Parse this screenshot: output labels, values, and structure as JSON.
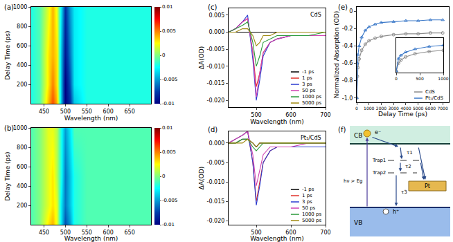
{
  "chart_data": [
    {
      "panel": "(a)",
      "type": "heatmap",
      "xlabel": "Wavelength (nm)",
      "ylabel": "Delay Time (ps)",
      "x": [
        420,
        440,
        460,
        470,
        480,
        490,
        500,
        510,
        520,
        550,
        600,
        650,
        700
      ],
      "y": [
        0,
        200,
        500,
        1000
      ],
      "z": [
        [
          -0.002,
          -0.001,
          0.004,
          0.006,
          0.004,
          -0.004,
          -0.01,
          -0.008,
          -0.004,
          -0.002,
          -0.002,
          -0.002,
          -0.002
        ],
        [
          -0.002,
          -0.001,
          0.003,
          0.005,
          0.003,
          -0.004,
          -0.01,
          -0.007,
          -0.003,
          -0.002,
          -0.002,
          -0.002,
          -0.002
        ],
        [
          -0.002,
          -0.001,
          0.003,
          0.004,
          0.003,
          -0.004,
          -0.009,
          -0.006,
          -0.003,
          -0.002,
          -0.002,
          -0.002,
          -0.002
        ],
        [
          -0.002,
          -0.001,
          0.002,
          0.004,
          0.002,
          -0.003,
          -0.008,
          -0.005,
          -0.003,
          -0.002,
          -0.002,
          -0.002,
          -0.002
        ]
      ],
      "xlim": [
        420,
        700
      ],
      "xticks": [
        450,
        500,
        550,
        600,
        650
      ],
      "ylim": [
        0,
        1000
      ],
      "yticks": [
        200,
        400,
        600,
        800,
        1000
      ],
      "colorbar": {
        "range": [
          -0.01,
          0.01
        ],
        "ticks": [
          -0.01,
          -0.005,
          0,
          0.005,
          0.01
        ]
      }
    },
    {
      "panel": "(b)",
      "type": "heatmap",
      "xlabel": "Wavelength (nm)",
      "ylabel": "Delay Time (ps)",
      "x": [
        420,
        440,
        460,
        470,
        480,
        490,
        500,
        510,
        520,
        550,
        600,
        650,
        700
      ],
      "y": [
        0,
        200,
        500,
        1000
      ],
      "z": [
        [
          -0.001,
          0,
          0.003,
          0.004,
          0.002,
          -0.003,
          -0.007,
          -0.005,
          -0.002,
          -0.001,
          -0.001,
          -0.001,
          -0.001
        ],
        [
          -0.001,
          0,
          0.002,
          0.003,
          0.002,
          -0.003,
          -0.006,
          -0.004,
          -0.002,
          -0.001,
          -0.001,
          -0.001,
          -0.001
        ],
        [
          -0.001,
          0,
          0.002,
          0.003,
          0.001,
          -0.002,
          -0.006,
          -0.004,
          -0.002,
          -0.001,
          -0.001,
          -0.001,
          -0.001
        ],
        [
          -0.001,
          0,
          0.002,
          0.002,
          0.001,
          -0.002,
          -0.005,
          -0.003,
          -0.001,
          -0.001,
          -0.001,
          -0.001,
          -0.001
        ]
      ],
      "xlim": [
        420,
        700
      ],
      "xticks": [
        450,
        500,
        550,
        600,
        650
      ],
      "ylim": [
        0,
        1000
      ],
      "yticks": [
        200,
        400,
        600,
        800,
        1000
      ],
      "colorbar": {
        "range": [
          -0.01,
          0.01
        ],
        "ticks": [
          -0.01,
          -0.005,
          0,
          0.005,
          0.01
        ]
      }
    },
    {
      "panel": "(c)",
      "type": "line",
      "label": "CdS",
      "xlabel": "Wavelength (nm)",
      "ylabel": "ΔA(OD)",
      "x": [
        420,
        440,
        460,
        475,
        490,
        500,
        510,
        520,
        540,
        560,
        600,
        650,
        700
      ],
      "xlim": [
        420,
        700
      ],
      "xticks": [
        500,
        600,
        700
      ],
      "ylim": [
        -0.022,
        0.007
      ],
      "yticks": [
        0.005,
        {
          "value": 0,
          "label": "0.000"
        },
        -0.005,
        {
          "value": -0.01,
          "label": "-0.010"
        },
        -0.015,
        {
          "value": -0.02,
          "label": "-0.020"
        }
      ],
      "legend": "lower right",
      "series": [
        {
          "name": "-1 ps",
          "color": "#000000",
          "values": [
            0,
            0,
            0,
            0,
            0,
            0,
            0,
            0,
            0,
            0,
            0,
            0,
            0
          ]
        },
        {
          "name": "1 ps",
          "color": "#e0302a",
          "values": [
            0,
            0.001,
            0.003,
            0.004,
            -0.006,
            -0.016,
            -0.012,
            -0.006,
            -0.003,
            -0.002,
            -0.001,
            -0.001,
            -0.001
          ]
        },
        {
          "name": "3 ps",
          "color": "#2a3bd0",
          "values": [
            0,
            0.001,
            0.003,
            0.005,
            -0.008,
            -0.02,
            -0.014,
            -0.007,
            -0.003,
            -0.002,
            -0.001,
            -0.001,
            -0.001
          ]
        },
        {
          "name": "50 ps",
          "color": "#d040b0",
          "values": [
            0,
            0.001,
            0.003,
            0.004,
            -0.006,
            -0.019,
            -0.012,
            -0.006,
            -0.003,
            -0.002,
            -0.001,
            -0.001,
            -0.001
          ]
        },
        {
          "name": "1000 ps",
          "color": "#2a9a3a",
          "values": [
            0,
            0.001,
            0.002,
            0.003,
            -0.003,
            -0.01,
            -0.007,
            -0.003,
            -0.002,
            -0.001,
            -0.001,
            -0.001,
            0
          ]
        },
        {
          "name": "5000 ps",
          "color": "#a08a10",
          "values": [
            0,
            0,
            0.001,
            0.001,
            -0.001,
            -0.004,
            -0.003,
            -0.001,
            -0.001,
            0,
            0,
            0,
            0
          ]
        }
      ]
    },
    {
      "panel": "(d)",
      "type": "line",
      "label": "Pt₁/CdS",
      "xlabel": "Wavelength (nm)",
      "ylabel": "ΔA(OD)",
      "x": [
        420,
        440,
        460,
        475,
        490,
        500,
        510,
        520,
        540,
        560,
        600,
        650,
        700
      ],
      "xlim": [
        420,
        700
      ],
      "xticks": [
        500,
        600,
        700
      ],
      "ylim": [
        -0.021,
        0.003
      ],
      "yticks": [
        {
          "value": 0,
          "label": "0.000"
        },
        -0.005,
        {
          "value": -0.01,
          "label": "-0.010"
        },
        -0.015,
        {
          "value": -0.02,
          "label": "-0.020"
        }
      ],
      "legend": "lower right",
      "series": [
        {
          "name": "-1 ps",
          "color": "#000000",
          "values": [
            0,
            0,
            0.001,
            0.001,
            0,
            -0.001,
            0,
            0,
            0,
            0,
            0,
            0,
            0
          ]
        },
        {
          "name": "1 ps",
          "color": "#e0302a",
          "values": [
            0,
            0.001,
            0.002,
            0.003,
            -0.005,
            -0.015,
            -0.01,
            -0.005,
            -0.002,
            -0.001,
            -0.001,
            -0.001,
            -0.001
          ]
        },
        {
          "name": "3 ps",
          "color": "#2a3bd0",
          "values": [
            0,
            0.001,
            0.002,
            0.003,
            -0.005,
            -0.016,
            -0.011,
            -0.005,
            -0.002,
            -0.001,
            -0.001,
            -0.001,
            -0.001
          ]
        },
        {
          "name": "50 ps",
          "color": "#d040b0",
          "values": [
            0,
            0.001,
            0.002,
            0.003,
            -0.003,
            -0.011,
            -0.007,
            -0.003,
            -0.001,
            -0.001,
            -0.001,
            0,
            0
          ]
        },
        {
          "name": "1000 ps",
          "color": "#2a9a3a",
          "values": [
            0,
            0,
            0.001,
            0.001,
            -0.001,
            -0.002,
            -0.001,
            0,
            0,
            0,
            0,
            0,
            0
          ]
        },
        {
          "name": "5000 ps",
          "color": "#a08a10",
          "values": [
            0,
            0,
            0,
            0.001,
            0,
            -0.001,
            0,
            0,
            0,
            0,
            0,
            0,
            0
          ]
        }
      ]
    },
    {
      "panel": "(e)",
      "type": "scatter",
      "xlabel": "Delay Time (ps)",
      "ylabel": "Normalized Absorption (OD)",
      "x": [
        0,
        50,
        100,
        200,
        400,
        700,
        1000,
        1500,
        2000,
        3000,
        4000,
        5000,
        6000,
        7000
      ],
      "xlim": [
        0,
        7500
      ],
      "xticks": [
        0,
        1000,
        2000,
        3000,
        4000,
        5000,
        6000,
        7000
      ],
      "ylim": [
        -1.05,
        0.05
      ],
      "yticks": [
        0,
        -0.2,
        -0.4,
        -0.6,
        -0.8,
        {
          "value": -1,
          "label": "-1.0"
        }
      ],
      "legend": "lower right",
      "series": [
        {
          "name": "CdS",
          "color": "#8c8c8c",
          "marker": "circle-open",
          "values": [
            -1,
            -0.75,
            -0.65,
            -0.55,
            -0.45,
            -0.38,
            -0.34,
            -0.31,
            -0.29,
            -0.27,
            -0.26,
            -0.26,
            -0.25,
            -0.25
          ]
        },
        {
          "name": "Pt₁/CdS",
          "color": "#3a78c8",
          "marker": "triangle-up-open",
          "values": [
            -1,
            -0.6,
            -0.5,
            -0.4,
            -0.3,
            -0.22,
            -0.18,
            -0.15,
            -0.13,
            -0.12,
            -0.11,
            -0.11,
            -0.1,
            -0.1
          ]
        }
      ],
      "inset": {
        "xlim": [
          0,
          1000
        ],
        "xticks": [
          0,
          500,
          1000
        ],
        "ylim": [
          -1.05,
          0.05
        ],
        "tick_labels": "x"
      }
    }
  ],
  "diagram": {
    "panel": "(f)",
    "bands": {
      "conduction": "CB",
      "valence": "VB"
    },
    "carriers": {
      "electron": "e⁻",
      "hole": "h⁺"
    },
    "excitation": "hν > Eg",
    "traps": [
      "Trap1",
      "Trap2"
    ],
    "lifetimes": [
      "τ1",
      "τ2",
      "τ3"
    ],
    "cocatalyst": "Pt"
  }
}
